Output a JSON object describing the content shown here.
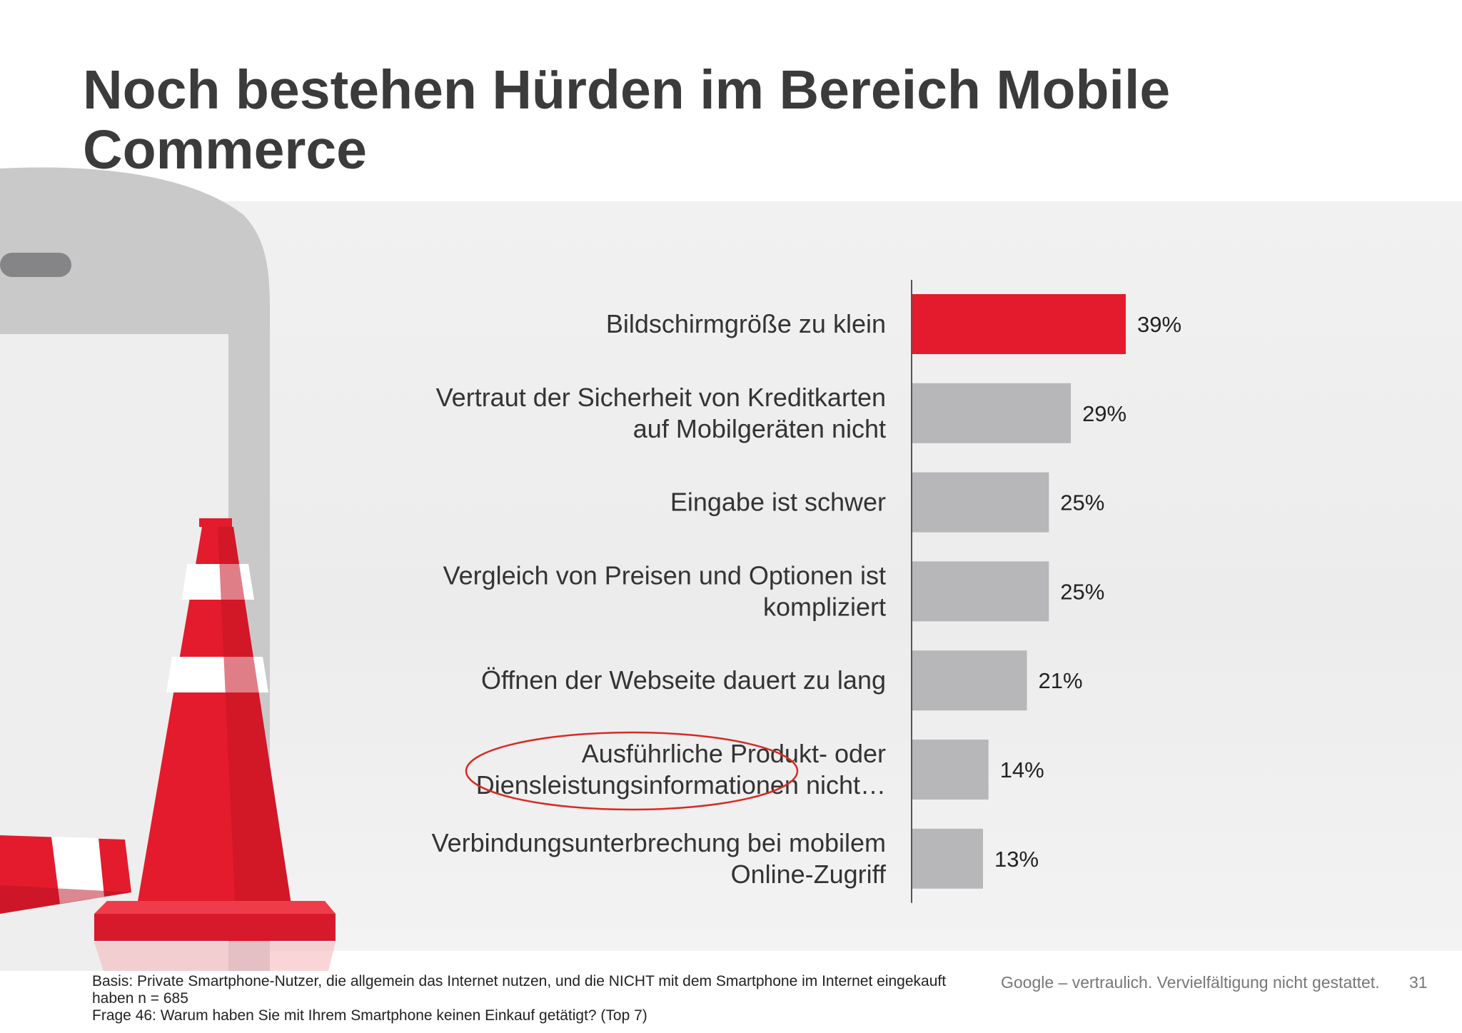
{
  "title": "Noch bestehen Hürden im Bereich Mobile Commerce",
  "chart_data": {
    "type": "bar",
    "orientation": "horizontal",
    "categories": [
      "Bildschirmgröße zu klein",
      "Vertraut der Sicherheit von Kreditkarten auf Mobilgeräten nicht",
      "Eingabe ist schwer",
      "Vergleich von Preisen und Optionen ist kompliziert",
      "Öffnen der Webseite dauert zu lang",
      "Ausführliche Produkt- oder Diensleistungsinformationen nicht…",
      "Verbindungsunterbrechung bei mobilem Online-Zugriff"
    ],
    "category_lines": [
      [
        "Bildschirmgröße zu klein"
      ],
      [
        "Vertraut der Sicherheit von Kreditkarten",
        "auf Mobilgeräten nicht"
      ],
      [
        "Eingabe ist schwer"
      ],
      [
        "Vergleich von Preisen und Optionen ist",
        "kompliziert"
      ],
      [
        "Öffnen der Webseite dauert zu lang"
      ],
      [
        "Ausführliche Produkt- oder",
        "Diensleistungsinformationen nicht…"
      ],
      [
        "Verbindungsunterbrechung bei mobilem",
        "Online-Zugriff"
      ]
    ],
    "values": [
      39,
      29,
      25,
      25,
      21,
      14,
      13
    ],
    "value_labels": [
      "39%",
      "29%",
      "25%",
      "25%",
      "21%",
      "14%",
      "13%"
    ],
    "unit": "%",
    "highlight_index": 0,
    "circled_index": 5,
    "colors": {
      "highlight": "#e31b2c",
      "bar": "#b7b6b8",
      "circle": "#d82a22",
      "axis": "#555555",
      "label": "#333333"
    },
    "xlim": [
      0,
      39
    ],
    "grid": false
  },
  "footer": {
    "basis": "Basis: Private Smartphone-Nutzer, die allgemein das Internet nutzen, und die NICHT mit dem Smartphone im Internet eingekauft",
    "basis_cont": "haben n = 685",
    "question": "Frage 46: Warum haben Sie mit Ihrem Smartphone keinen Einkauf getätigt? (Top 7)",
    "confidential": "Google – vertraulich. Vervielfältigung nicht gestattet.",
    "page_number": "31"
  }
}
